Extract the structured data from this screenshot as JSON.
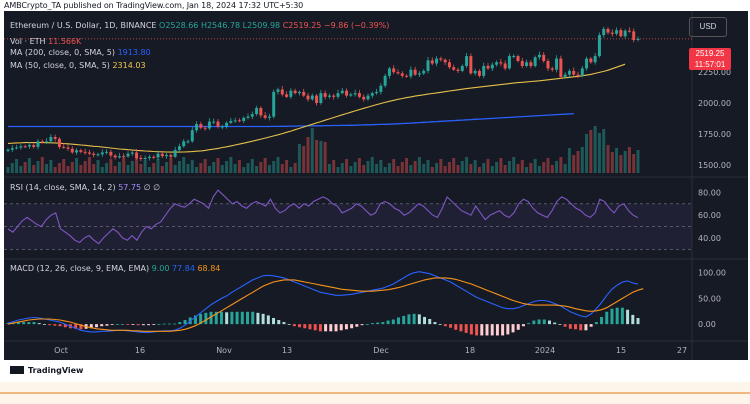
{
  "header": {
    "text": "AMBCrypto_TA published on TradingView.com, Jan 18, 2024 17:32 UTC+5:30"
  },
  "legend": {
    "symbol": "Ethereum / U.S. Dollar, 1D, BINANCE",
    "o": "O2528.66",
    "h": "H2546.78",
    "l": "L2509.98",
    "c": "C2519.25",
    "chg": "−9.86 (−0.39%)",
    "vol_label": "Vol · ETH",
    "vol_value": "11.566K",
    "ma200_label": "MA (200, close, 0, SMA, 5)",
    "ma200_value": "1913.80",
    "ma50_label": "MA (50, close, 0, SMA, 5)",
    "ma50_value": "2314.03",
    "rsi_label": "RSI (14, close, SMA, 14, 2)",
    "rsi_value": "57.75",
    "rsi_extra": "∅ ∅",
    "macd_label": "MACD (12, 26, close, 9, EMA, EMA)",
    "macd_hist": "9.00",
    "macd_line": "77.84",
    "macd_signal": "68.84"
  },
  "currency": "USD",
  "last_price": "2519.25",
  "countdown": "11:57:01",
  "footer": {
    "brand": "TradingView"
  },
  "colors": {
    "bg": "#161a25",
    "up": "#26a69a",
    "down": "#ef5350",
    "ma200": "#2962ff",
    "ma50": "#e6c04a",
    "rsi": "#7e57c2",
    "macd": "#2962ff",
    "signal": "#f7931a"
  },
  "chart_data": [
    {
      "type": "candlestick",
      "title": "Ethereum / U.S. Dollar, 1D, BINANCE",
      "x_ticks": [
        "Oct",
        "16",
        "Nov",
        "13",
        "Dec",
        "18",
        "2024",
        "15",
        "27"
      ],
      "y_ticks": [
        "2250.00",
        "2000.00",
        "1750.00",
        "1500.00"
      ],
      "ylim": [
        1450,
        2680
      ],
      "close": [
        1622,
        1635,
        1640,
        1650,
        1648,
        1660,
        1645,
        1690,
        1688,
        1690,
        1725,
        1710,
        1645,
        1640,
        1630,
        1600,
        1618,
        1605,
        1600,
        1590,
        1580,
        1585,
        1600,
        1605,
        1575,
        1560,
        1570,
        1568,
        1590,
        1600,
        1555,
        1550,
        1555,
        1565,
        1560,
        1590,
        1570,
        1580,
        1565,
        1620,
        1650,
        1690,
        1690,
        1780,
        1830,
        1800,
        1795,
        1850,
        1850,
        1810,
        1810,
        1840,
        1855,
        1860,
        1855,
        1880,
        1890,
        1910,
        1960,
        1900,
        1880,
        1890,
        2090,
        2110,
        2070,
        2050,
        2100,
        2080,
        2090,
        2060,
        2030,
        2060,
        2000,
        2080,
        2050,
        2060,
        2050,
        2080,
        2100,
        2060,
        2070,
        2080,
        2050,
        2030,
        2060,
        2080,
        2090,
        2140,
        2220,
        2280,
        2250,
        2240,
        2220,
        2215,
        2270,
        2230,
        2240,
        2260,
        2345,
        2320,
        2360,
        2350,
        2330,
        2290,
        2270,
        2260,
        2300,
        2380,
        2240,
        2260,
        2220,
        2300,
        2280,
        2310,
        2330,
        2320,
        2280,
        2380,
        2380,
        2340,
        2300,
        2330,
        2300,
        2370,
        2390,
        2340,
        2280,
        2270,
        2360,
        2210,
        2230,
        2260,
        2230,
        2220,
        2280,
        2360,
        2330,
        2380,
        2550,
        2600,
        2570,
        2560,
        2590,
        2540,
        2585,
        2580,
        2510,
        2519.25
      ],
      "ma200": [
        1810,
        1810,
        1810,
        1810,
        1810,
        1810,
        1810,
        1810,
        1810,
        1810,
        1810,
        1810,
        1810,
        1810,
        1810,
        1810,
        1810,
        1810,
        1810,
        1810,
        1810,
        1810,
        1810,
        1810,
        1810,
        1810,
        1810,
        1810,
        1810,
        1810,
        1810,
        1810,
        1810,
        1810,
        1810,
        1810,
        1810,
        1810,
        1810,
        1810,
        1810,
        1810,
        1810,
        1810,
        1810,
        1810,
        1810,
        1810,
        1810,
        1810,
        1810,
        1810,
        1810,
        1810,
        1810,
        1810,
        1810,
        1810,
        1810,
        1810,
        1810,
        1810,
        1811,
        1811,
        1812,
        1812,
        1813,
        1813,
        1814,
        1814,
        1815,
        1815,
        1816,
        1816,
        1817,
        1817,
        1818,
        1818,
        1819,
        1819,
        1820,
        1821,
        1822,
        1823,
        1824,
        1825,
        1826,
        1827,
        1828,
        1829,
        1830,
        1832,
        1834,
        1836,
        1838,
        1840,
        1842,
        1844,
        1846,
        1848,
        1850,
        1852,
        1854,
        1856,
        1858,
        1860,
        1862,
        1864,
        1866,
        1868,
        1870,
        1872,
        1874,
        1876,
        1878,
        1880,
        1882,
        1884,
        1886,
        1888,
        1890,
        1892,
        1894,
        1896,
        1898,
        1900,
        1902,
        1904,
        1906,
        1908,
        1910,
        1912,
        1913.8
      ],
      "ma50": [
        1673,
        1675,
        1677,
        1678,
        1680,
        1680,
        1680,
        1680,
        1680,
        1679,
        1678,
        1677,
        1675,
        1672,
        1670,
        1667,
        1664,
        1660,
        1658,
        1654,
        1650,
        1648,
        1643,
        1640,
        1636,
        1632,
        1628,
        1626,
        1622,
        1620,
        1617,
        1614,
        1612,
        1610,
        1608,
        1606,
        1605,
        1604,
        1603,
        1603,
        1603,
        1604,
        1605,
        1607,
        1610,
        1613,
        1617,
        1622,
        1627,
        1633,
        1640,
        1646,
        1653,
        1660,
        1668,
        1675,
        1683,
        1691,
        1699,
        1708,
        1716,
        1725,
        1734,
        1743,
        1753,
        1763,
        1773,
        1784,
        1795,
        1806,
        1817,
        1828,
        1839,
        1850,
        1861,
        1872,
        1883,
        1894,
        1905,
        1915,
        1926,
        1936,
        1947,
        1957,
        1967,
        1977,
        1987,
        1996,
        2005,
        2014,
        2022,
        2030,
        2037,
        2044,
        2050,
        2056,
        2062,
        2067,
        2072,
        2077,
        2082,
        2087,
        2092,
        2097,
        2102,
        2107,
        2112,
        2117,
        2121,
        2125,
        2129,
        2133,
        2137,
        2141,
        2145,
        2149,
        2153,
        2157,
        2161,
        2165,
        2168,
        2171,
        2174,
        2177,
        2180,
        2184,
        2188,
        2192,
        2196,
        2200,
        2204,
        2208,
        2212,
        2216,
        2220,
        2226,
        2232,
        2240,
        2248,
        2256,
        2266,
        2278,
        2290,
        2302,
        2314.03
      ],
      "volume_peak_index": 71
    },
    {
      "type": "line",
      "title": "RSI (14, close, SMA, 14, 2)",
      "y_ticks": [
        "80.00",
        "60.00",
        "40.00"
      ],
      "ylim": [
        25,
        90
      ],
      "values": [
        48,
        45,
        50,
        55,
        58,
        55,
        52,
        50,
        56,
        60,
        62,
        48,
        45,
        42,
        38,
        36,
        40,
        42,
        38,
        35,
        40,
        44,
        48,
        45,
        40,
        38,
        42,
        38,
        45,
        50,
        48,
        52,
        54,
        60,
        66,
        70,
        68,
        67,
        70,
        74,
        72,
        70,
        66,
        76,
        82,
        78,
        74,
        70,
        72,
        68,
        66,
        70,
        72,
        70,
        68,
        74,
        66,
        62,
        64,
        68,
        70,
        66,
        70,
        68,
        72,
        74,
        76,
        74,
        70,
        68,
        62,
        64,
        66,
        70,
        68,
        64,
        60,
        62,
        70,
        72,
        70,
        66,
        64,
        60,
        62,
        66,
        70,
        68,
        64,
        60,
        58,
        66,
        76,
        72,
        68,
        64,
        62,
        60,
        68,
        62,
        56,
        60,
        62,
        64,
        60,
        58,
        62,
        70,
        74,
        72,
        66,
        62,
        60,
        58,
        64,
        72,
        76,
        74,
        70,
        66,
        64,
        60,
        58,
        62,
        74,
        72,
        66,
        62,
        68,
        70,
        64,
        60,
        57.75
      ]
    },
    {
      "type": "line",
      "title": "MACD (12, 26, close, 9, EMA, EMA)",
      "y_ticks": [
        "100.00",
        "50.00",
        "0.00"
      ],
      "ylim": [
        -25,
        115
      ],
      "macd": [
        2,
        5,
        8,
        10,
        12,
        13,
        12,
        10,
        8,
        6,
        4,
        0,
        -4,
        -8,
        -12,
        -14,
        -15,
        -15,
        -14,
        -14,
        -13,
        -12,
        -12,
        -13,
        -14,
        -15,
        -16,
        -16,
        -15,
        -14,
        -13,
        -13,
        -12,
        -8,
        -2,
        6,
        14,
        22,
        30,
        38,
        44,
        50,
        55,
        62,
        68,
        74,
        80,
        86,
        90,
        94,
        95,
        94,
        92,
        90,
        86,
        82,
        78,
        74,
        70,
        66,
        62,
        60,
        58,
        56,
        56,
        57,
        58,
        60,
        62,
        64,
        66,
        68,
        70,
        74,
        78,
        84,
        90,
        96,
        100,
        102,
        100,
        98,
        94,
        90,
        86,
        82,
        76,
        70,
        64,
        58,
        52,
        48,
        44,
        40,
        36,
        32,
        30,
        30,
        32,
        36,
        40,
        44,
        46,
        46,
        44,
        40,
        36,
        30,
        24,
        20,
        16,
        14,
        20,
        30,
        42,
        56,
        68,
        76,
        82,
        84,
        80,
        77.84
      ],
      "signal": [
        0,
        2,
        4,
        6,
        8,
        9,
        10,
        10,
        10,
        9,
        8,
        6,
        4,
        1,
        -2,
        -5,
        -7,
        -9,
        -10,
        -11,
        -12,
        -12,
        -12,
        -12,
        -13,
        -13,
        -14,
        -14,
        -14,
        -14,
        -14,
        -14,
        -13,
        -12,
        -10,
        -7,
        -3,
        2,
        8,
        14,
        20,
        26,
        32,
        38,
        44,
        50,
        56,
        62,
        68,
        74,
        78,
        82,
        84,
        86,
        86,
        86,
        84,
        82,
        80,
        78,
        76,
        74,
        72,
        70,
        68,
        67,
        66,
        65,
        64,
        64,
        64,
        65,
        66,
        67,
        69,
        71,
        74,
        77,
        80,
        83,
        86,
        88,
        90,
        90,
        90,
        89,
        87,
        84,
        81,
        78,
        74,
        70,
        66,
        62,
        58,
        54,
        50,
        46,
        43,
        40,
        38,
        37,
        37,
        37,
        37,
        37,
        36,
        35,
        33,
        30,
        28,
        26,
        25,
        26,
        28,
        32,
        38,
        44,
        50,
        56,
        62,
        66,
        68.84
      ]
    }
  ]
}
